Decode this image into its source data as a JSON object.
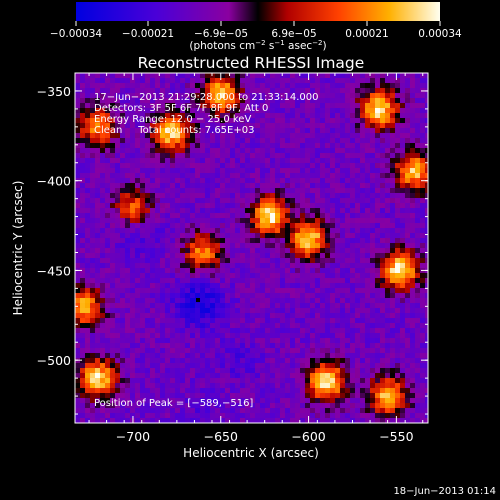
{
  "colorbar": {
    "ticks": [
      "−0.00034",
      "−0.00021",
      "−6.9e−05",
      "6.9e−05",
      "0.00021",
      "0.00034"
    ],
    "units_main": "(photons cm",
    "units_sup1": "−2",
    "units_mid": " s",
    "units_sup2": "−1",
    "units_mid2": " asec",
    "units_sup3": "−2",
    "units_end": ")"
  },
  "chart_data": {
    "type": "heatmap",
    "title": "Reconstructed RHESSI Image",
    "xlabel": "Heliocentric X (arcsec)",
    "ylabel": "Heliocentric Y (arcsec)",
    "xlim": [
      -733,
      -532
    ],
    "ylim": [
      -535,
      -340
    ],
    "xticks": [
      -700,
      -650,
      -600,
      -550
    ],
    "yticks": [
      -350,
      -400,
      -450,
      -500
    ],
    "xtick_labels": [
      "−700",
      "−650",
      "−600",
      "−550"
    ],
    "ytick_labels": [
      "−350",
      "−400",
      "−450",
      "−500"
    ],
    "colorbar_range": [
      -0.00034,
      0.00034
    ],
    "peak": {
      "x": -589,
      "y": -516
    },
    "hot_regions": [
      {
        "x": -678,
        "y": -373,
        "value": 0.0003
      },
      {
        "x": -650,
        "y": -352,
        "value": 0.00028
      },
      {
        "x": -622,
        "y": -420,
        "value": 0.00032
      },
      {
        "x": -600,
        "y": -432,
        "value": 0.0003
      },
      {
        "x": -590,
        "y": -512,
        "value": 0.00034
      },
      {
        "x": -560,
        "y": -360,
        "value": 0.00031
      },
      {
        "x": -548,
        "y": -450,
        "value": 0.00033
      },
      {
        "x": -540,
        "y": -395,
        "value": 0.00026
      },
      {
        "x": -720,
        "y": -510,
        "value": 0.0003
      },
      {
        "x": -728,
        "y": -470,
        "value": 0.00024
      },
      {
        "x": -720,
        "y": -370,
        "value": 0.00022
      },
      {
        "x": -660,
        "y": -440,
        "value": 0.0002
      },
      {
        "x": -555,
        "y": -520,
        "value": 0.00026
      },
      {
        "x": -700,
        "y": -415,
        "value": 0.00016
      }
    ],
    "cold_regions": [
      {
        "x": -662,
        "y": -468,
        "value": -0.0003
      },
      {
        "x": -697,
        "y": -430,
        "value": -0.0002
      },
      {
        "x": -640,
        "y": -500,
        "value": -0.00018
      },
      {
        "x": -660,
        "y": -525,
        "value": -0.00016
      }
    ],
    "background_value": -0.00012
  },
  "annotations": {
    "time": "17−Jun−2013 21:29:28.000 to 21:33:14.000",
    "detectors": "Detectors: 3F 5F 6F 7F 8F 9F, Att 0",
    "energy": "Energy Range: 12.0 − 25.0 keV",
    "clean": "Clean     Total counts: 7.65E+03",
    "peak": "Position of Peak = [−589,−516]"
  },
  "footer": {
    "timestamp": "18−Jun−2013 01:14"
  }
}
